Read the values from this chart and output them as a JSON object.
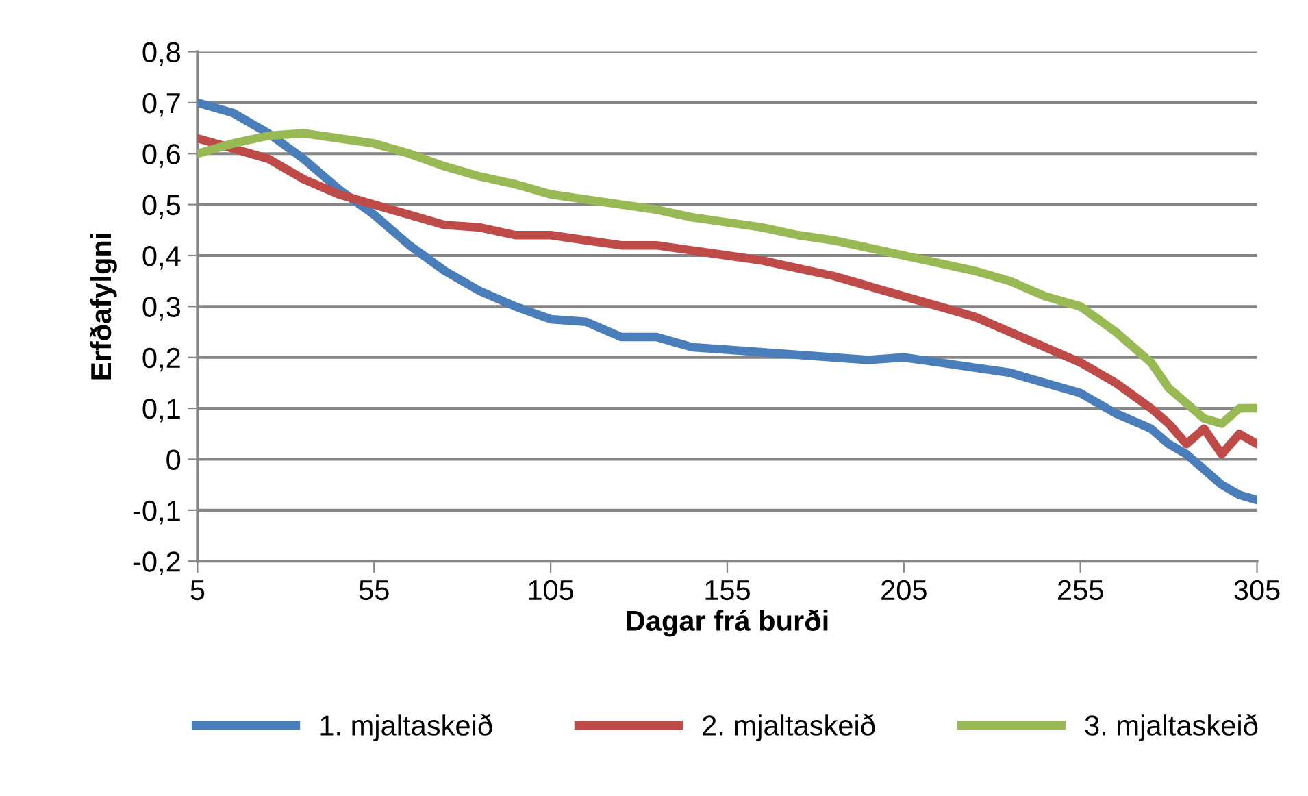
{
  "chart_data": {
    "type": "line",
    "xlabel": "Dagar frá burði",
    "ylabel": "Erfðafylgni",
    "x": [
      5,
      15,
      25,
      35,
      45,
      55,
      65,
      75,
      85,
      95,
      105,
      115,
      125,
      135,
      145,
      155,
      165,
      175,
      185,
      195,
      205,
      215,
      225,
      235,
      245,
      255,
      265,
      275,
      280,
      285,
      290,
      295,
      300,
      305
    ],
    "xlim": [
      5,
      305
    ],
    "xticks": [
      5,
      55,
      105,
      155,
      205,
      255,
      305
    ],
    "ylim": [
      -0.2,
      0.8
    ],
    "yticks": [
      {
        "value": -0.2,
        "label": "-0,2"
      },
      {
        "value": -0.1,
        "label": "-0,1"
      },
      {
        "value": 0,
        "label": "0"
      },
      {
        "value": 0.1,
        "label": "0,1"
      },
      {
        "value": 0.2,
        "label": "0,2"
      },
      {
        "value": 0.3,
        "label": "0,3"
      },
      {
        "value": 0.4,
        "label": "0,4"
      },
      {
        "value": 0.5,
        "label": "0,5"
      },
      {
        "value": 0.6,
        "label": "0,6"
      },
      {
        "value": 0.7,
        "label": "0,7"
      },
      {
        "value": 0.8,
        "label": "0,8"
      }
    ],
    "grid": "y",
    "legend": "bottom",
    "marker": "none",
    "line_style": "solid",
    "series": [
      {
        "name": "1. mjaltaskeið",
        "color": "#4a7ebb",
        "values": [
          0.7,
          0.68,
          0.64,
          0.59,
          0.53,
          0.48,
          0.42,
          0.37,
          0.33,
          0.3,
          0.275,
          0.27,
          0.24,
          0.24,
          0.22,
          0.215,
          0.21,
          0.205,
          0.2,
          0.195,
          0.2,
          0.19,
          0.18,
          0.17,
          0.15,
          0.13,
          0.09,
          0.06,
          0.03,
          0.01,
          -0.02,
          -0.05,
          -0.07,
          -0.08
        ]
      },
      {
        "name": "2. mjaltaskeið",
        "color": "#be4b48",
        "values": [
          0.63,
          0.61,
          0.59,
          0.55,
          0.52,
          0.5,
          0.48,
          0.46,
          0.455,
          0.44,
          0.44,
          0.43,
          0.42,
          0.42,
          0.41,
          0.4,
          0.39,
          0.375,
          0.36,
          0.34,
          0.32,
          0.3,
          0.28,
          0.25,
          0.22,
          0.19,
          0.15,
          0.1,
          0.07,
          0.03,
          0.06,
          0.01,
          0.05,
          0.03
        ]
      },
      {
        "name": "3. mjaltaskeið",
        "color": "#98b954",
        "values": [
          0.6,
          0.62,
          0.635,
          0.64,
          0.63,
          0.62,
          0.6,
          0.575,
          0.555,
          0.54,
          0.52,
          0.51,
          0.5,
          0.49,
          0.475,
          0.465,
          0.455,
          0.44,
          0.43,
          0.415,
          0.4,
          0.385,
          0.37,
          0.35,
          0.32,
          0.3,
          0.25,
          0.19,
          0.14,
          0.11,
          0.08,
          0.07,
          0.1,
          0.1
        ]
      }
    ]
  }
}
